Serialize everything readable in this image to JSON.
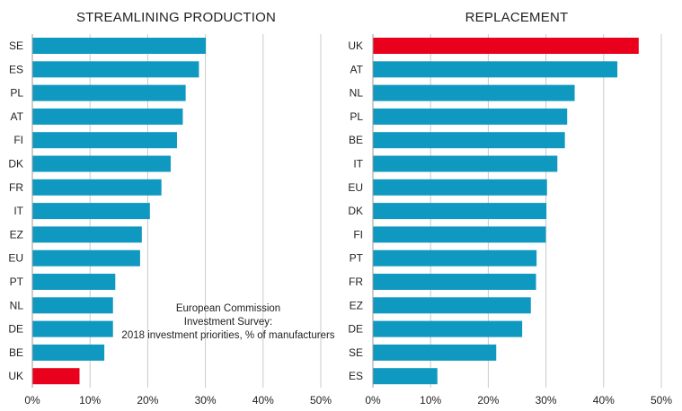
{
  "chart_data": [
    {
      "type": "bar",
      "orientation": "horizontal",
      "title": "STREAMLINING PRODUCTION",
      "categories": [
        "SE",
        "ES",
        "PL",
        "AT",
        "FI",
        "DK",
        "FR",
        "IT",
        "EZ",
        "EU",
        "PT",
        "NL",
        "DE",
        "BE",
        "UK"
      ],
      "values": [
        30,
        28.8,
        26.5,
        26,
        25,
        23.9,
        22.3,
        20.3,
        18.9,
        18.6,
        14.3,
        13.9,
        13.9,
        12.4,
        8.1
      ],
      "highlight": [
        "UK"
      ],
      "xlim": [
        0,
        50
      ],
      "xticks": [
        0,
        10,
        20,
        30,
        40,
        50
      ],
      "tick_labels": [
        "0%",
        "10%",
        "20%",
        "30%",
        "40%",
        "50%"
      ],
      "grid": true,
      "colors": {
        "bar": "#0f98c0",
        "highlight": "#e8001c"
      },
      "annotation": [
        "European Commission",
        "Investment Survey:",
        "2018 investment priorities, % of manufacturers"
      ]
    },
    {
      "type": "bar",
      "orientation": "horizontal",
      "title": "REPLACEMENT",
      "categories": [
        "UK",
        "AT",
        "NL",
        "PL",
        "BE",
        "IT",
        "EU",
        "DK",
        "FI",
        "PT",
        "FR",
        "EZ",
        "DE",
        "SE",
        "ES"
      ],
      "values": [
        46,
        42.3,
        34.9,
        33.6,
        33.2,
        31.9,
        30.1,
        30,
        29.9,
        28.3,
        28.2,
        27.3,
        25.8,
        21.3,
        11.1
      ],
      "highlight": [
        "UK"
      ],
      "xlim": [
        0,
        50
      ],
      "xticks": [
        0,
        10,
        20,
        30,
        40,
        50
      ],
      "tick_labels": [
        "0%",
        "10%",
        "20%",
        "30%",
        "40%",
        "50%"
      ],
      "grid": true,
      "colors": {
        "bar": "#0f98c0",
        "highlight": "#e8001c"
      }
    }
  ]
}
